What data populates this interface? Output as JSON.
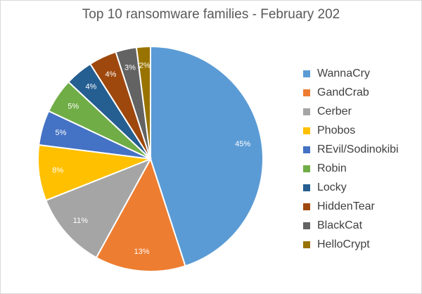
{
  "chart_data": {
    "type": "pie",
    "title": "Top 10 ransomware families - February 202",
    "categories": [
      "WannaCry",
      "GandCrab",
      "Cerber",
      "Phobos",
      "REvil/Sodinokibi",
      "Robin",
      "Locky",
      "HiddenTear",
      "BlackCat",
      "HelloCrypt"
    ],
    "values": [
      45,
      13,
      11,
      8,
      5,
      5,
      4,
      4,
      3,
      2
    ],
    "data_labels": [
      "45%",
      "13%",
      "11%",
      "8%",
      "5%",
      "5%",
      "4%",
      "4%",
      "3%",
      "2%"
    ],
    "colors": [
      "#5b9bd5",
      "#ed7d31",
      "#a5a5a5",
      "#ffc000",
      "#4472c4",
      "#70ad47",
      "#255e91",
      "#9e480e",
      "#636363",
      "#997300"
    ],
    "legend_position": "right",
    "start_angle": "12 o'clock",
    "direction": "clockwise"
  }
}
